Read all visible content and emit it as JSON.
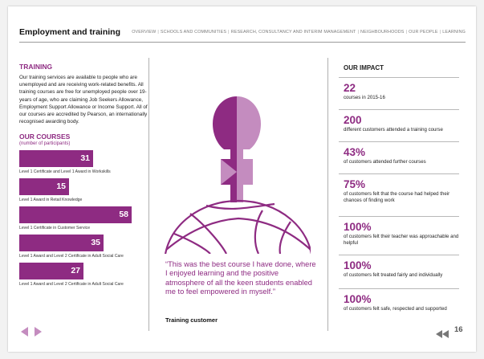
{
  "header": {
    "title": "Employment and training",
    "nav": [
      "OVERVIEW",
      "SCHOOLS AND COMMUNITIES",
      "RESEARCH, CONSULTANCY AND INTERIM MANAGEMENT",
      "NEIGHBOURHOODS",
      "OUR PEOPLE",
      "LEARNING"
    ]
  },
  "training": {
    "heading": "TRAINING",
    "body": "Our training services are available to people who are unemployed and are receiving work-related benefits. All training courses are free for unemployed people over 19-years of age, who are claiming Job Seekers Allowance, Employment Support Allowance or Income Support. All of our courses are accredited by Pearson, an internationally recognised awarding body."
  },
  "courses": {
    "heading": "OUR COURSES",
    "subheading": "(number of participants)",
    "items": [
      {
        "label": "Level 1 Certificate and Level 1 Award in Workskills",
        "value": "31"
      },
      {
        "label": "Level 1 Award in Retail Knowledge",
        "value": "15"
      },
      {
        "label": "Level 1 Certificate in Customer Service",
        "value": "58"
      },
      {
        "label": "Level 1 Award and Level 2 Certificate in Adult Social Care",
        "value": "35"
      },
      {
        "label": "Level 1 Award and Level 2 Certificate in Adult Social Care",
        "value": "27"
      }
    ]
  },
  "quote": {
    "text": "“This was the best course I have done, where I enjoyed learning and the positive atmosphere of all the keen students enabled me to feel empowered in myself.”",
    "author": "Training customer"
  },
  "impact": {
    "heading": "OUR IMPACT",
    "items": [
      {
        "number": "22",
        "desc": "courses in 2015-16"
      },
      {
        "number": "200",
        "desc": "different customers attended a training course"
      },
      {
        "number": "43%",
        "desc": "of customers attended further courses"
      },
      {
        "number": "75%",
        "desc": "of customers felt that the course had helped their chances of finding work"
      },
      {
        "number": "100%",
        "desc": "of customers felt their teacher was approachable and helpful"
      },
      {
        "number": "100%",
        "desc": "of customers felt treated fairly and individually"
      },
      {
        "number": "100%",
        "desc": "of customers felt safe, respected and supported"
      }
    ]
  },
  "footer": {
    "page_number": "16",
    "icons": [
      "arrow-left-icon",
      "arrow-right-icon",
      "rewind-icon"
    ]
  },
  "colors": {
    "accent": "#8e2b82",
    "accent_light": "#c48cbf"
  }
}
